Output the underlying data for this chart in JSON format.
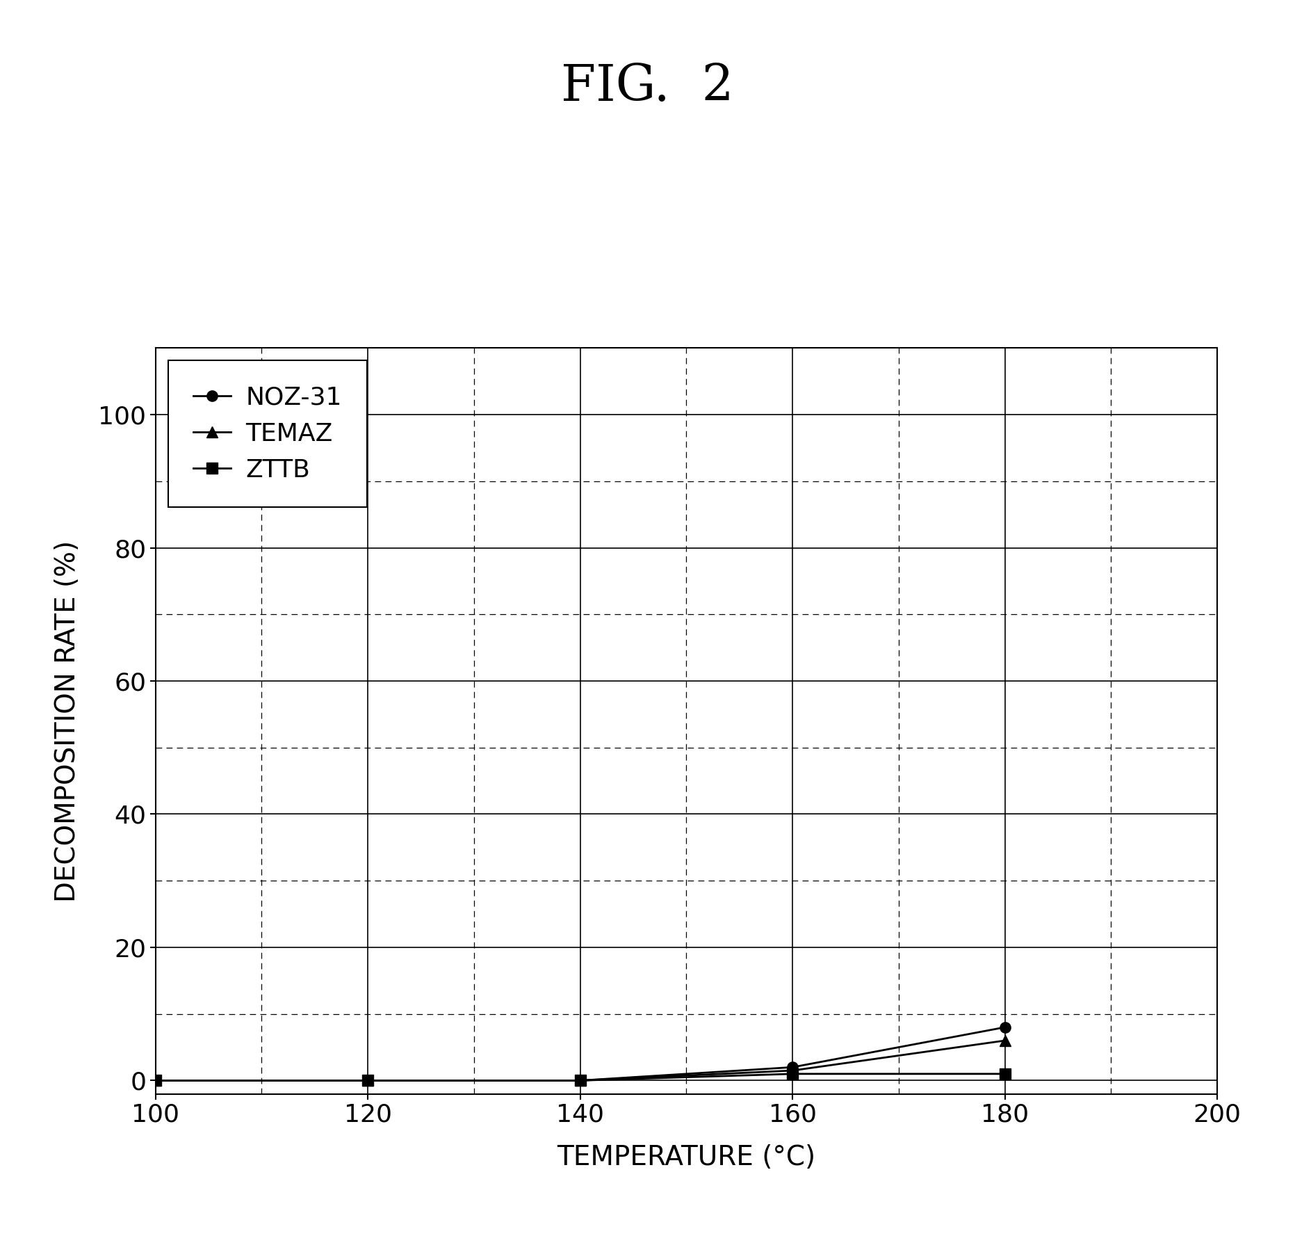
{
  "title": "FIG.  2",
  "xlabel": "TEMPERATURE (°C)",
  "ylabel": "DECOMPOSITION RATE (%)",
  "xlim": [
    100,
    200
  ],
  "ylim": [
    -2,
    110
  ],
  "xticks": [
    100,
    120,
    140,
    160,
    180,
    200
  ],
  "yticks": [
    0,
    20,
    40,
    60,
    80,
    100
  ],
  "series": [
    {
      "label": "NOZ-31",
      "x": [
        100,
        120,
        140,
        160,
        180
      ],
      "y": [
        0,
        0,
        0,
        2,
        8
      ],
      "marker": "o",
      "color": "black",
      "markersize": 11
    },
    {
      "label": "TEMAZ",
      "x": [
        100,
        120,
        140,
        160,
        180
      ],
      "y": [
        0,
        0,
        0,
        1.5,
        6
      ],
      "marker": "^",
      "color": "black",
      "markersize": 11
    },
    {
      "label": "ZTTB",
      "x": [
        100,
        120,
        140,
        160,
        180
      ],
      "y": [
        0,
        0,
        0,
        1,
        1
      ],
      "marker": "s",
      "color": "black",
      "markersize": 11
    }
  ],
  "background_color": "white",
  "title_fontsize": 52,
  "axis_label_fontsize": 28,
  "tick_fontsize": 26,
  "legend_fontsize": 26
}
